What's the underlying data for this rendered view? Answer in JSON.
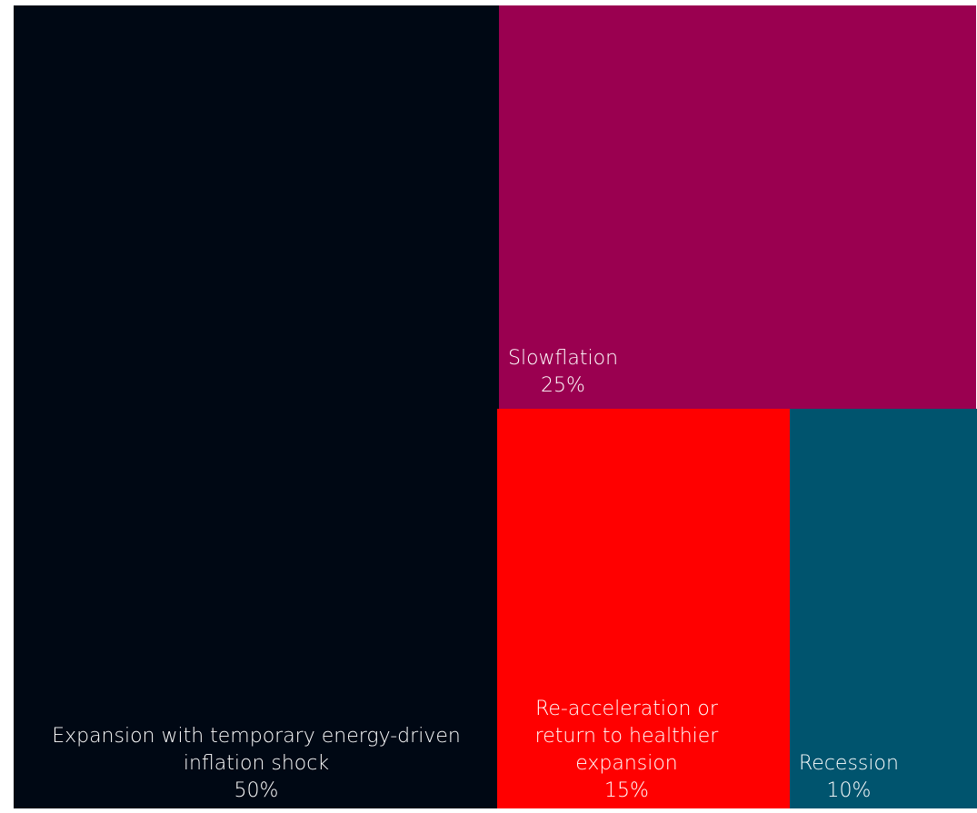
{
  "chart_data": {
    "type": "treemap",
    "series": [
      {
        "name": "Expansion with temporary energy-driven inflation shock",
        "label_lines": [
          "Expansion with temporary energy-driven",
          "inflation shock"
        ],
        "value": 50,
        "value_label": "50%",
        "color": "#000814"
      },
      {
        "name": "Slowflation",
        "label_lines": [
          "Slowflation"
        ],
        "value": 25,
        "value_label": "25%",
        "color": "#9a0050"
      },
      {
        "name": "Re-acceleration or return to healthier expansion",
        "label_lines": [
          "Re-acceleration or",
          "return to healthier",
          "expansion"
        ],
        "value": 15,
        "value_label": "15%",
        "color": "#ff0000"
      },
      {
        "name": "Recession",
        "label_lines": [
          "Recession"
        ],
        "value": 10,
        "value_label": "10%",
        "color": "#00546e"
      }
    ]
  }
}
